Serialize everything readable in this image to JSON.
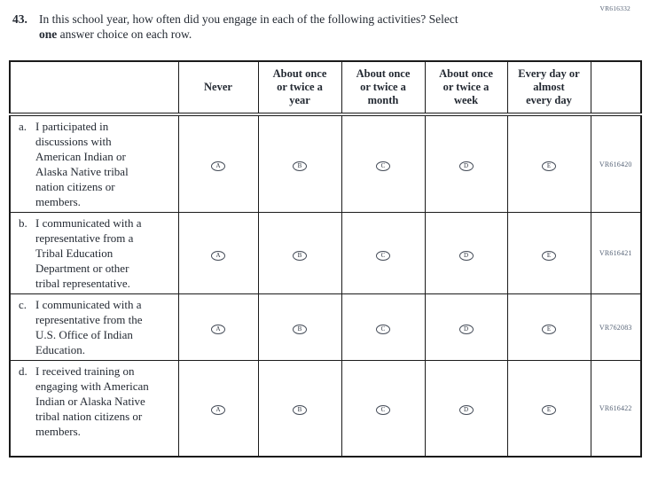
{
  "page_code": "VR616332",
  "question": {
    "number": "43.",
    "line1": "In this school year, how often did you engage in each of the following activities? Select",
    "line2_bold": "one",
    "line2_rest": " answer choice on each row."
  },
  "table": {
    "columns": [
      {
        "key": "never",
        "lines": [
          "Never"
        ]
      },
      {
        "key": "once-twice-year",
        "lines": [
          "About once",
          "or twice a",
          "year"
        ]
      },
      {
        "key": "once-twice-month",
        "lines": [
          "About once",
          "or twice a",
          "month"
        ]
      },
      {
        "key": "once-twice-week",
        "lines": [
          "About once",
          "or twice a",
          "week"
        ]
      },
      {
        "key": "every-day",
        "lines": [
          "Every day or",
          "almost",
          "every day"
        ]
      }
    ],
    "option_letters": [
      "A",
      "B",
      "C",
      "D",
      "E"
    ],
    "rows": [
      {
        "key": "a",
        "letter": "a.",
        "statement": "I participated in discussions with American Indian or Alaska Native tribal nation citizens or members.",
        "code": "VR616420"
      },
      {
        "key": "b",
        "letter": "b.",
        "statement": "I communicated with a representative from a Tribal Education Department or other tribal representative.",
        "code": "VR616421"
      },
      {
        "key": "c",
        "letter": "c.",
        "statement": "I communicated with a representative from the U.S. Office of Indian Education.",
        "code": "VR762083"
      },
      {
        "key": "d",
        "letter": "d.",
        "statement": "I received training on engaging with American Indian or Alaska Native tribal nation citizens or members.",
        "code": "VR616422"
      }
    ]
  },
  "colors": {
    "text": "#242a33",
    "border": "#1b1b1b",
    "code_text": "#566376"
  }
}
